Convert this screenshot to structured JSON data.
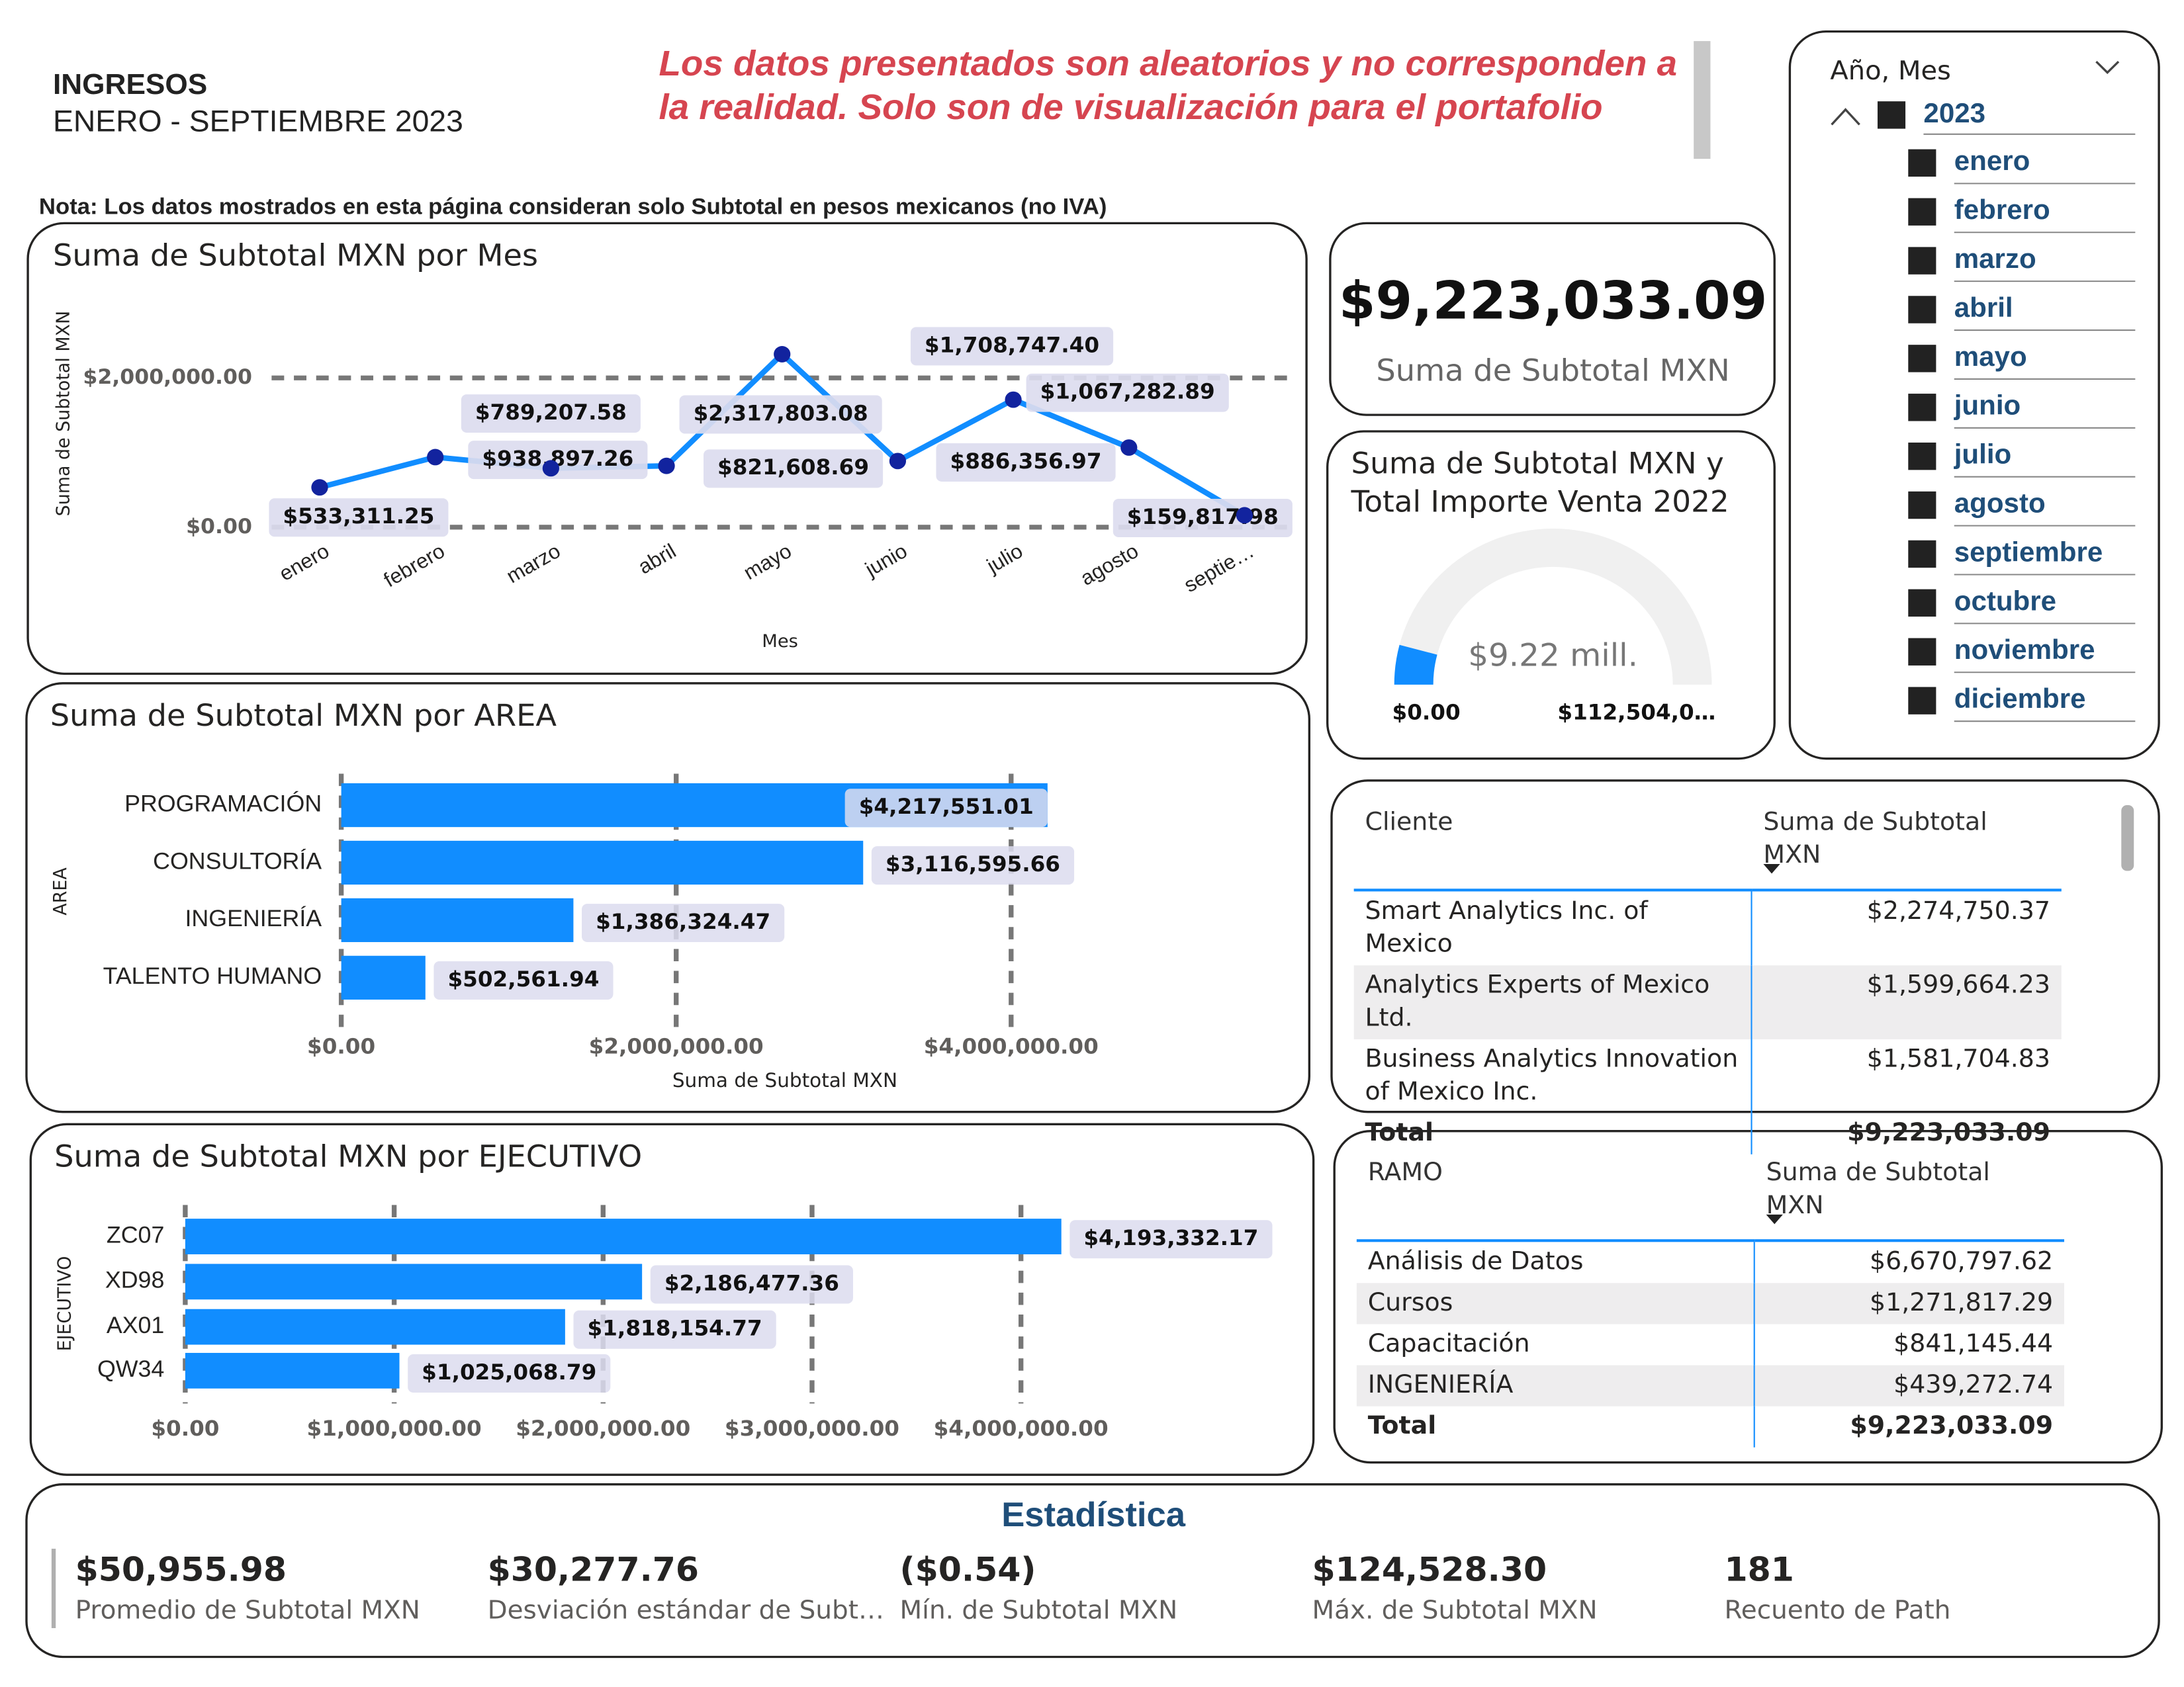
{
  "header": {
    "title": "INGRESOS",
    "subtitle": "ENERO - SEPTIEMBRE 2023",
    "disclaimer": "Los datos presentados son aleatorios y no corresponden a la realidad. Solo son de visualización para el portafolio",
    "note": "Nota: Los datos mostrados en esta página consideran solo Subtotal en pesos mexicanos (no IVA)"
  },
  "chart_data": [
    {
      "type": "line",
      "title": "Suma de Subtotal MXN por Mes",
      "x_label": "Mes",
      "y_label": "Suma de Subtotal MXN",
      "categories": [
        "enero",
        "febrero",
        "marzo",
        "abril",
        "mayo",
        "junio",
        "julio",
        "agosto",
        "septie…"
      ],
      "values": [
        533311.25,
        938897.26,
        789207.58,
        821608.69,
        2317803.08,
        886356.97,
        1708747.4,
        1067282.89,
        159817.98
      ],
      "value_labels": [
        "$533,311.25",
        "$938,897.26",
        "$789,207.58",
        "$821,608.69",
        "$2,317,803.08",
        "$886,356.97",
        "$1,708,747.40",
        "$1,067,282.89",
        "$159,817.98"
      ],
      "color": "#118dff",
      "marker_color": "#12239e",
      "ylim": [
        0,
        2600000
      ],
      "yticks": [
        {
          "value": 0,
          "label": "$0.00"
        },
        {
          "value": 2000000,
          "label": "$2,000,000.00"
        }
      ],
      "grid": true
    },
    {
      "type": "bar",
      "title": "Suma de Subtotal MXN por AREA",
      "x_label": "Suma de Subtotal MXN",
      "y_label": "AREA",
      "categories": [
        "PROGRAMACIÓN",
        "CONSULTORÍA",
        "INGENIERÍA",
        "TALENTO HUMANO"
      ],
      "values": [
        4217551.01,
        3116595.66,
        1386324.47,
        502561.94
      ],
      "value_labels": [
        "$4,217,551.01",
        "$3,116,595.66",
        "$1,386,324.47",
        "$502,561.94"
      ],
      "color": "#118dff",
      "xlim": [
        0,
        4300000
      ],
      "xticks": [
        {
          "value": 0,
          "label": "$0.00"
        },
        {
          "value": 2000000,
          "label": "$2,000,000.00"
        },
        {
          "value": 4000000,
          "label": "$4,000,000.00"
        }
      ],
      "grid": true
    },
    {
      "type": "bar",
      "title": "Suma de Subtotal MXN por EJECUTIVO",
      "y_label": "EJECUTIVO",
      "categories": [
        "ZC07",
        "XD98",
        "AX01",
        "QW34"
      ],
      "values": [
        4193332.17,
        2186477.36,
        1818154.77,
        1025068.79
      ],
      "value_labels": [
        "$4,193,332.17",
        "$2,186,477.36",
        "$1,818,154.77",
        "$1,025,068.79"
      ],
      "color": "#118dff",
      "xlim": [
        0,
        4500000
      ],
      "xticks": [
        {
          "value": 0,
          "label": "$0.00"
        },
        {
          "value": 1000000,
          "label": "$1,000,000.00"
        },
        {
          "value": 2000000,
          "label": "$2,000,000.00"
        },
        {
          "value": 3000000,
          "label": "$3,000,000.00"
        },
        {
          "value": 4000000,
          "label": "$4,000,000.00"
        }
      ],
      "grid": true
    },
    {
      "type": "gauge",
      "title": [
        "Suma de Subtotal MXN y",
        "Total Importe Venta 2022"
      ],
      "value": 9223033.09,
      "value_label": "$9.22 mill.",
      "color": "#118dff",
      "min": {
        "value": 0,
        "label": "$0.00"
      },
      "max": {
        "value": 112504000,
        "label": "$112,504,0…"
      }
    }
  ],
  "kpi": {
    "value": "$9,223,033.09",
    "label": "Suma de Subtotal MXN"
  },
  "slicer": {
    "title": "Año, Mes",
    "year": "2023",
    "months": [
      "enero",
      "febrero",
      "marzo",
      "abril",
      "mayo",
      "junio",
      "julio",
      "agosto",
      "septiembre",
      "octubre",
      "noviembre",
      "diciembre"
    ]
  },
  "clients_table": {
    "headers": [
      "Cliente",
      "Suma de Subtotal MXN"
    ],
    "rows": [
      [
        "Smart Analytics Inc. of Mexico",
        "$2,274,750.37"
      ],
      [
        "Analytics Experts of Mexico Ltd.",
        "$1,599,664.23"
      ],
      [
        "Business Analytics Innovation of Mexico Inc.",
        "$1,581,704.83"
      ]
    ],
    "total": [
      "Total",
      "$9,223,033.09"
    ]
  },
  "ramo_table": {
    "headers": [
      "RAMO",
      "Suma de Subtotal MXN"
    ],
    "rows": [
      [
        "Análisis de Datos",
        "$6,670,797.62"
      ],
      [
        "Cursos",
        "$1,271,817.29"
      ],
      [
        "Capacitación",
        "$841,145.44"
      ],
      [
        "INGENIERÍA",
        "$439,272.74"
      ]
    ],
    "total": [
      "Total",
      "$9,223,033.09"
    ]
  },
  "statistics": {
    "title": "Estadística",
    "items": [
      {
        "value": "$50,955.98",
        "label": "Promedio de Subtotal MXN"
      },
      {
        "value": "$30,277.76",
        "label": "Desviación estándar de Subt…"
      },
      {
        "value": "($0.54)",
        "label": "Mín. de Subtotal MXN"
      },
      {
        "value": "$124,528.30",
        "label": "Máx. de Subtotal MXN"
      },
      {
        "value": "181",
        "label": "Recuento de Path"
      }
    ]
  }
}
